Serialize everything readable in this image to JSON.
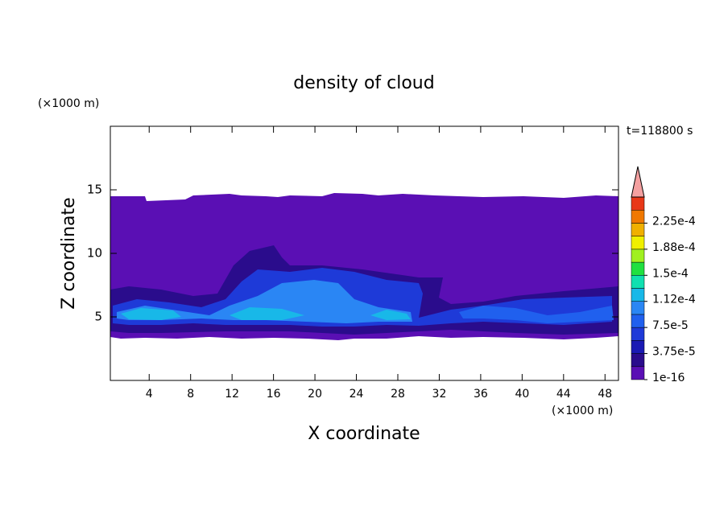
{
  "chart_data": {
    "type": "contour",
    "title": "density of cloud",
    "xlabel": "X coordinate",
    "ylabel": "Z coordinate",
    "xunit": "(×1000 m)",
    "yunit": "(×1000 m)",
    "annotation": "t=118800 s",
    "xlim": [
      0.25,
      49.3
    ],
    "ylim": [
      0,
      20
    ],
    "xticks": [
      4,
      8,
      12,
      16,
      20,
      24,
      28,
      32,
      36,
      40,
      44,
      48
    ],
    "yticks": [
      5,
      10,
      15
    ],
    "colorbar": {
      "lim": [
        0,
        0.0002625
      ],
      "ticks": [
        {
          "value": 1e-16,
          "label": "1e-16"
        },
        {
          "value": 3.75e-05,
          "label": "3.75e-5"
        },
        {
          "value": 7.5e-05,
          "label": "7.5e-5"
        },
        {
          "value": 0.0001125,
          "label": "1.12e-4"
        },
        {
          "value": 0.00015,
          "label": "1.5e-4"
        },
        {
          "value": 0.0001875,
          "label": "1.88e-4"
        },
        {
          "value": 0.000225,
          "label": "2.25e-4"
        }
      ],
      "colors": [
        "#5a0fb4",
        "#2a0c8c",
        "#1a1ab4",
        "#1e3ad8",
        "#2060ee",
        "#2a86f4",
        "#18b8e8",
        "#10e0b0",
        "#20e040",
        "#a0f020",
        "#f0f000",
        "#f0b000",
        "#f07800",
        "#e83818"
      ],
      "extend_color": "#f4a0a0"
    }
  }
}
